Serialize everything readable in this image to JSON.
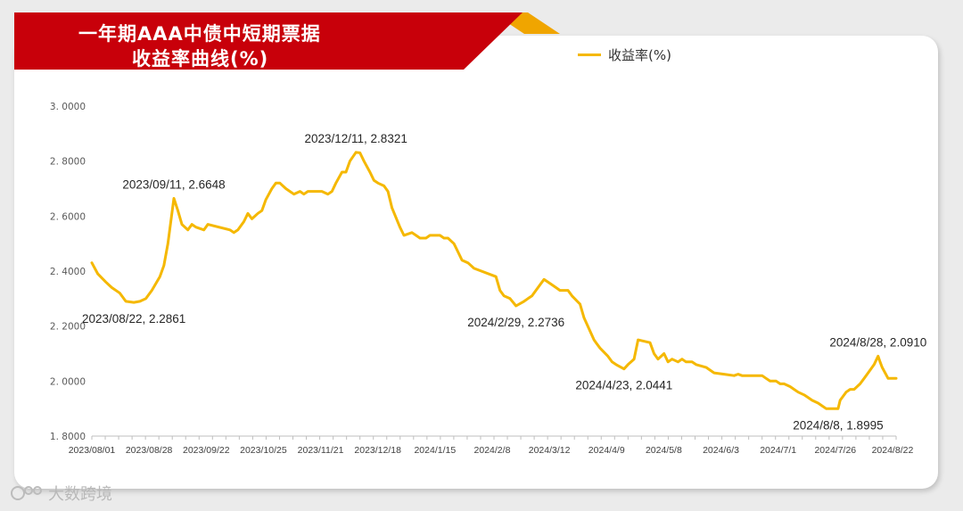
{
  "title": {
    "line1": "一年期AAA中债中短期票据",
    "line2": "收益率曲线(%)"
  },
  "legend": {
    "label": "收益率(%)",
    "color": "#f5b800"
  },
  "watermark": {
    "text": "大数跨境"
  },
  "colors": {
    "banner": "#c8000a",
    "banner_accent": "#f0a500",
    "line": "#f5b800",
    "background": "#ebebeb"
  },
  "chart_data": {
    "type": "line",
    "title": "一年期AAA中债中短期票据收益率曲线(%)",
    "xlabel": "",
    "ylabel": "",
    "ylim": [
      1.8,
      3.0
    ],
    "yticks": [
      1.8,
      2.0,
      2.2,
      2.4,
      2.6,
      2.8,
      3.0
    ],
    "ytick_labels": [
      "1. 8000",
      "2. 0000",
      "2. 2000",
      "2. 4000",
      "2. 6000",
      "2. 8000",
      "3. 0000"
    ],
    "xlim": [
      "2023-08-01",
      "2024-09-06"
    ],
    "xtick_labels": [
      "2023/08/01",
      "2023/08/28",
      "2023/09/22",
      "2023/10/25",
      "2023/11/21",
      "2023/12/18",
      "2024/1/15",
      "2024/2/8",
      "2024/3/12",
      "2024/4/9",
      "2024/5/8",
      "2024/6/3",
      "2024/7/1",
      "2024/7/26",
      "2024/8/22"
    ],
    "grid": false,
    "legend_position": "top-right",
    "series": [
      {
        "name": "收益率(%)",
        "color": "#f5b800",
        "points": [
          [
            "2023-08-01",
            2.43
          ],
          [
            "2023-08-04",
            2.39
          ],
          [
            "2023-08-08",
            2.36
          ],
          [
            "2023-08-11",
            2.34
          ],
          [
            "2023-08-15",
            2.32
          ],
          [
            "2023-08-18",
            2.29
          ],
          [
            "2023-08-22",
            2.2861
          ],
          [
            "2023-08-25",
            2.29
          ],
          [
            "2023-08-28",
            2.3
          ],
          [
            "2023-08-31",
            2.33
          ],
          [
            "2023-09-04",
            2.38
          ],
          [
            "2023-09-06",
            2.42
          ],
          [
            "2023-09-08",
            2.5
          ],
          [
            "2023-09-11",
            2.6648
          ],
          [
            "2023-09-13",
            2.62
          ],
          [
            "2023-09-15",
            2.57
          ],
          [
            "2023-09-18",
            2.55
          ],
          [
            "2023-09-20",
            2.57
          ],
          [
            "2023-09-22",
            2.56
          ],
          [
            "2023-09-26",
            2.55
          ],
          [
            "2023-09-28",
            2.57
          ],
          [
            "2023-10-09",
            2.55
          ],
          [
            "2023-10-11",
            2.54
          ],
          [
            "2023-10-13",
            2.55
          ],
          [
            "2023-10-16",
            2.58
          ],
          [
            "2023-10-18",
            2.61
          ],
          [
            "2023-10-20",
            2.59
          ],
          [
            "2023-10-23",
            2.61
          ],
          [
            "2023-10-25",
            2.62
          ],
          [
            "2023-10-27",
            2.66
          ],
          [
            "2023-10-30",
            2.7
          ],
          [
            "2023-11-01",
            2.72
          ],
          [
            "2023-11-03",
            2.72
          ],
          [
            "2023-11-06",
            2.7
          ],
          [
            "2023-11-08",
            2.69
          ],
          [
            "2023-11-10",
            2.68
          ],
          [
            "2023-11-13",
            2.69
          ],
          [
            "2023-11-15",
            2.68
          ],
          [
            "2023-11-17",
            2.69
          ],
          [
            "2023-11-21",
            2.69
          ],
          [
            "2023-11-24",
            2.69
          ],
          [
            "2023-11-27",
            2.68
          ],
          [
            "2023-11-29",
            2.69
          ],
          [
            "2023-12-01",
            2.72
          ],
          [
            "2023-12-04",
            2.76
          ],
          [
            "2023-12-06",
            2.76
          ],
          [
            "2023-12-08",
            2.8
          ],
          [
            "2023-12-11",
            2.8321
          ],
          [
            "2023-12-13",
            2.83
          ],
          [
            "2023-12-15",
            2.8
          ],
          [
            "2023-12-18",
            2.76
          ],
          [
            "2023-12-20",
            2.73
          ],
          [
            "2023-12-22",
            2.72
          ],
          [
            "2023-12-25",
            2.71
          ],
          [
            "2023-12-27",
            2.69
          ],
          [
            "2023-12-29",
            2.63
          ],
          [
            "2024-01-02",
            2.56
          ],
          [
            "2024-01-04",
            2.53
          ],
          [
            "2024-01-08",
            2.54
          ],
          [
            "2024-01-10",
            2.53
          ],
          [
            "2024-01-12",
            2.52
          ],
          [
            "2024-01-15",
            2.52
          ],
          [
            "2024-01-17",
            2.53
          ],
          [
            "2024-01-19",
            2.53
          ],
          [
            "2024-01-22",
            2.53
          ],
          [
            "2024-01-24",
            2.52
          ],
          [
            "2024-01-26",
            2.52
          ],
          [
            "2024-01-29",
            2.5
          ],
          [
            "2024-01-31",
            2.47
          ],
          [
            "2024-02-02",
            2.44
          ],
          [
            "2024-02-05",
            2.43
          ],
          [
            "2024-02-08",
            2.41
          ],
          [
            "2024-02-19",
            2.38
          ],
          [
            "2024-02-21",
            2.33
          ],
          [
            "2024-02-23",
            2.31
          ],
          [
            "2024-02-26",
            2.3
          ],
          [
            "2024-02-29",
            2.2736
          ],
          [
            "2024-03-04",
            2.29
          ],
          [
            "2024-03-06",
            2.3
          ],
          [
            "2024-03-08",
            2.31
          ],
          [
            "2024-03-12",
            2.35
          ],
          [
            "2024-03-14",
            2.37
          ],
          [
            "2024-03-18",
            2.35
          ],
          [
            "2024-03-20",
            2.34
          ],
          [
            "2024-03-22",
            2.33
          ],
          [
            "2024-03-26",
            2.33
          ],
          [
            "2024-03-28",
            2.31
          ],
          [
            "2024-04-01",
            2.28
          ],
          [
            "2024-04-03",
            2.23
          ],
          [
            "2024-04-08",
            2.15
          ],
          [
            "2024-04-09",
            2.14
          ],
          [
            "2024-04-11",
            2.12
          ],
          [
            "2024-04-15",
            2.09
          ],
          [
            "2024-04-17",
            2.07
          ],
          [
            "2024-04-19",
            2.06
          ],
          [
            "2024-04-23",
            2.0441
          ],
          [
            "2024-04-25",
            2.06
          ],
          [
            "2024-04-28",
            2.08
          ],
          [
            "2024-04-30",
            2.15
          ],
          [
            "2024-05-06",
            2.14
          ],
          [
            "2024-05-08",
            2.1
          ],
          [
            "2024-05-10",
            2.08
          ],
          [
            "2024-05-13",
            2.1
          ],
          [
            "2024-05-15",
            2.07
          ],
          [
            "2024-05-17",
            2.08
          ],
          [
            "2024-05-20",
            2.07
          ],
          [
            "2024-05-22",
            2.08
          ],
          [
            "2024-05-24",
            2.07
          ],
          [
            "2024-05-27",
            2.07
          ],
          [
            "2024-05-29",
            2.06
          ],
          [
            "2024-06-03",
            2.05
          ],
          [
            "2024-06-05",
            2.04
          ],
          [
            "2024-06-07",
            2.03
          ],
          [
            "2024-06-12",
            2.025
          ],
          [
            "2024-06-17",
            2.02
          ],
          [
            "2024-06-19",
            2.025
          ],
          [
            "2024-06-21",
            2.02
          ],
          [
            "2024-06-24",
            2.02
          ],
          [
            "2024-06-26",
            2.02
          ],
          [
            "2024-06-28",
            2.02
          ],
          [
            "2024-07-01",
            2.02
          ],
          [
            "2024-07-03",
            2.01
          ],
          [
            "2024-07-05",
            2.0
          ],
          [
            "2024-07-08",
            2.0
          ],
          [
            "2024-07-10",
            1.99
          ],
          [
            "2024-07-12",
            1.99
          ],
          [
            "2024-07-15",
            1.98
          ],
          [
            "2024-07-17",
            1.97
          ],
          [
            "2024-07-19",
            1.96
          ],
          [
            "2024-07-22",
            1.95
          ],
          [
            "2024-07-24",
            1.94
          ],
          [
            "2024-07-26",
            1.93
          ],
          [
            "2024-07-29",
            1.92
          ],
          [
            "2024-07-31",
            1.91
          ],
          [
            "2024-08-02",
            1.9
          ],
          [
            "2024-08-05",
            1.9
          ],
          [
            "2024-08-08",
            1.8995
          ],
          [
            "2024-08-09",
            1.93
          ],
          [
            "2024-08-12",
            1.96
          ],
          [
            "2024-08-14",
            1.97
          ],
          [
            "2024-08-16",
            1.97
          ],
          [
            "2024-08-19",
            1.99
          ],
          [
            "2024-08-21",
            2.01
          ],
          [
            "2024-08-23",
            2.03
          ],
          [
            "2024-08-26",
            2.06
          ],
          [
            "2024-08-28",
            2.091
          ],
          [
            "2024-08-29",
            2.07
          ],
          [
            "2024-08-30",
            2.05
          ],
          [
            "2024-09-02",
            2.01
          ],
          [
            "2024-09-04",
            2.01
          ],
          [
            "2024-09-06",
            2.01
          ]
        ]
      }
    ],
    "annotations": [
      {
        "date": "2023-08-22",
        "value": 2.2861,
        "text": "2023/08/22, 2.2861",
        "pos": "below"
      },
      {
        "date": "2023-09-11",
        "value": 2.6648,
        "text": "2023/09/11, 2.6648",
        "pos": "above"
      },
      {
        "date": "2023-12-11",
        "value": 2.8321,
        "text": "2023/12/11, 2.8321",
        "pos": "above"
      },
      {
        "date": "2024-02-29",
        "value": 2.2736,
        "text": "2024/2/29, 2.2736",
        "pos": "below"
      },
      {
        "date": "2024-04-23",
        "value": 2.0441,
        "text": "2024/4/23, 2.0441",
        "pos": "below"
      },
      {
        "date": "2024-08-08",
        "value": 1.8995,
        "text": "2024/8/8, 1.8995",
        "pos": "below"
      },
      {
        "date": "2024-08-28",
        "value": 2.091,
        "text": "2024/8/28, 2.0910",
        "pos": "above"
      }
    ]
  }
}
